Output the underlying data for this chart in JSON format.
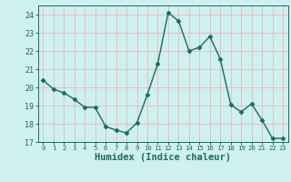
{
  "x": [
    0,
    1,
    2,
    3,
    4,
    5,
    6,
    7,
    8,
    9,
    10,
    11,
    12,
    13,
    14,
    15,
    16,
    17,
    18,
    19,
    20,
    21,
    22,
    23
  ],
  "y": [
    20.4,
    19.9,
    19.7,
    19.35,
    18.9,
    18.9,
    17.85,
    17.65,
    17.5,
    18.05,
    19.6,
    21.3,
    24.1,
    23.65,
    22.0,
    22.2,
    22.8,
    21.55,
    19.05,
    18.65,
    19.1,
    18.2,
    17.2,
    17.2
  ],
  "line_color": "#1a6b5a",
  "marker": "D",
  "markersize": 2.5,
  "linewidth": 1.0,
  "xlabel": "Humidex (Indice chaleur)",
  "xlim": [
    -0.5,
    23.5
  ],
  "ylim": [
    17,
    24.5
  ],
  "yticks": [
    17,
    18,
    19,
    20,
    21,
    22,
    23,
    24
  ],
  "xticks": [
    0,
    1,
    2,
    3,
    4,
    5,
    6,
    7,
    8,
    9,
    10,
    11,
    12,
    13,
    14,
    15,
    16,
    17,
    18,
    19,
    20,
    21,
    22,
    23
  ],
  "bg_color": "#cff0f0",
  "grid_color": "#e8b8b8",
  "tick_color": "#1a6b5a",
  "label_color": "#1a6b5a",
  "xlabel_fontsize": 7.5
}
